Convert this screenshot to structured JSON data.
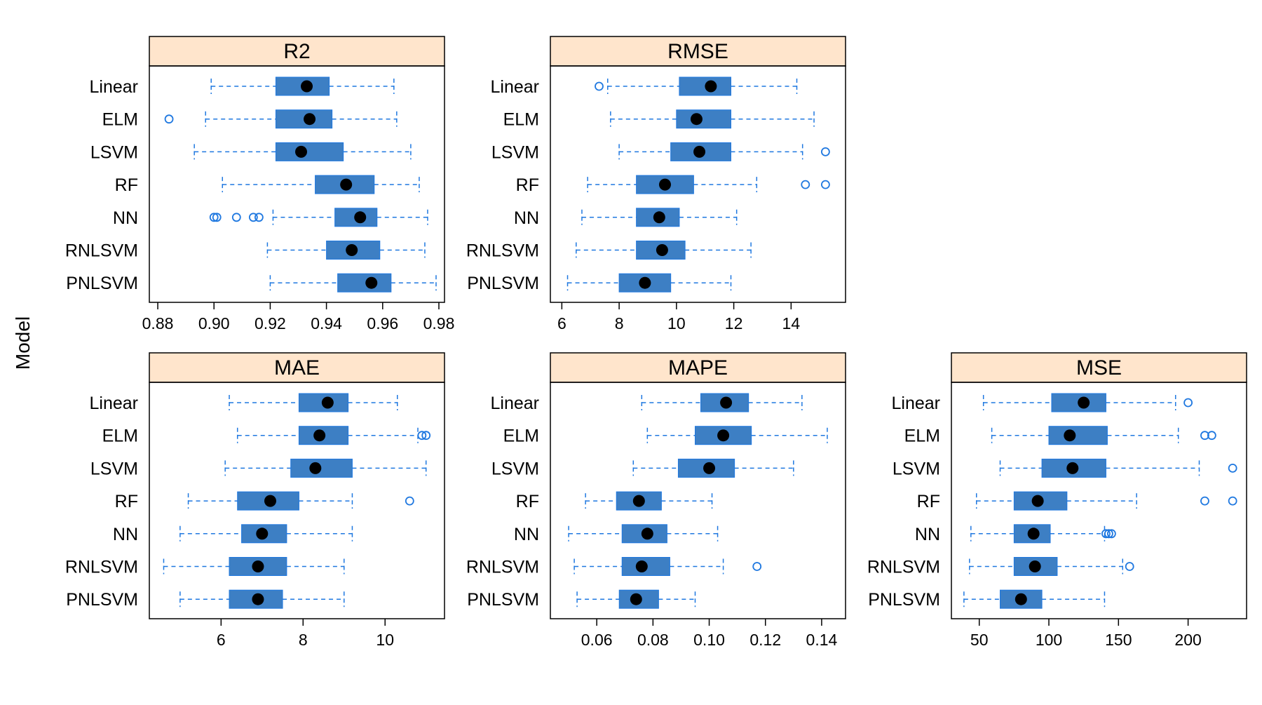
{
  "y_axis_label": "Model",
  "style": {
    "strip_fill": "#FFE5CC",
    "box_fill": "#3D7FC4",
    "whisker_color": "#1F78E0",
    "median_dot": "#000000"
  },
  "chart_data": [
    {
      "type": "boxplot",
      "title": "R2",
      "categories": [
        "Linear",
        "ELM",
        "LSVM",
        "RF",
        "NN",
        "RNLSVM",
        "PNLSVM"
      ],
      "xlim": [
        0.877,
        0.982
      ],
      "ticks": [
        0.88,
        0.9,
        0.92,
        0.94,
        0.96,
        0.98
      ],
      "tick_labels": [
        "0.88",
        "0.90",
        "0.92",
        "0.94",
        "0.96",
        "0.98"
      ],
      "boxes": [
        {
          "min": 0.899,
          "q1": 0.922,
          "median": 0.933,
          "q3": 0.941,
          "max": 0.964,
          "outliers": []
        },
        {
          "min": 0.897,
          "q1": 0.922,
          "median": 0.934,
          "q3": 0.942,
          "max": 0.965,
          "outliers": [
            0.884
          ]
        },
        {
          "min": 0.893,
          "q1": 0.922,
          "median": 0.931,
          "q3": 0.946,
          "max": 0.97,
          "outliers": []
        },
        {
          "min": 0.903,
          "q1": 0.936,
          "median": 0.947,
          "q3": 0.957,
          "max": 0.973,
          "outliers": []
        },
        {
          "min": 0.921,
          "q1": 0.943,
          "median": 0.952,
          "q3": 0.958,
          "max": 0.976,
          "outliers": [
            0.9,
            0.901,
            0.908,
            0.914,
            0.916
          ]
        },
        {
          "min": 0.919,
          "q1": 0.94,
          "median": 0.949,
          "q3": 0.959,
          "max": 0.975,
          "outliers": []
        },
        {
          "min": 0.92,
          "q1": 0.944,
          "median": 0.956,
          "q3": 0.963,
          "max": 0.979,
          "outliers": []
        }
      ]
    },
    {
      "type": "boxplot",
      "title": "RMSE",
      "categories": [
        "Linear",
        "ELM",
        "LSVM",
        "RF",
        "NN",
        "RNLSVM",
        "PNLSVM"
      ],
      "xlim": [
        5.6,
        15.9
      ],
      "ticks": [
        6,
        8,
        10,
        12,
        14
      ],
      "tick_labels": [
        "6",
        "8",
        "10",
        "12",
        "14"
      ],
      "boxes": [
        {
          "min": 7.6,
          "q1": 10.1,
          "median": 11.2,
          "q3": 11.9,
          "max": 14.2,
          "outliers": [
            7.3
          ]
        },
        {
          "min": 7.7,
          "q1": 10.0,
          "median": 10.7,
          "q3": 11.9,
          "max": 14.8,
          "outliers": []
        },
        {
          "min": 8.0,
          "q1": 9.8,
          "median": 10.8,
          "q3": 11.9,
          "max": 14.4,
          "outliers": [
            15.2
          ]
        },
        {
          "min": 6.9,
          "q1": 8.6,
          "median": 9.6,
          "q3": 10.6,
          "max": 12.8,
          "outliers": [
            14.5,
            15.2
          ]
        },
        {
          "min": 6.7,
          "q1": 8.6,
          "median": 9.4,
          "q3": 10.1,
          "max": 12.1,
          "outliers": []
        },
        {
          "min": 6.5,
          "q1": 8.6,
          "median": 9.5,
          "q3": 10.3,
          "max": 12.6,
          "outliers": []
        },
        {
          "min": 6.2,
          "q1": 8.0,
          "median": 8.9,
          "q3": 9.8,
          "max": 11.9,
          "outliers": []
        }
      ]
    },
    {
      "type": "boxplot",
      "title": "MAE",
      "categories": [
        "Linear",
        "ELM",
        "LSVM",
        "RF",
        "NN",
        "RNLSVM",
        "PNLSVM"
      ],
      "xlim": [
        4.25,
        11.45
      ],
      "ticks": [
        6,
        8,
        10
      ],
      "tick_labels": [
        "6",
        "8",
        "10"
      ],
      "boxes": [
        {
          "min": 6.2,
          "q1": 7.9,
          "median": 8.6,
          "q3": 9.1,
          "max": 10.3,
          "outliers": []
        },
        {
          "min": 6.4,
          "q1": 7.9,
          "median": 8.4,
          "q3": 9.1,
          "max": 10.8,
          "outliers": [
            10.9,
            11.0
          ]
        },
        {
          "min": 6.1,
          "q1": 7.7,
          "median": 8.3,
          "q3": 9.2,
          "max": 11.0,
          "outliers": []
        },
        {
          "min": 5.2,
          "q1": 6.4,
          "median": 7.2,
          "q3": 7.9,
          "max": 9.2,
          "outliers": [
            10.6
          ]
        },
        {
          "min": 5.0,
          "q1": 6.5,
          "median": 7.0,
          "q3": 7.6,
          "max": 9.2,
          "outliers": []
        },
        {
          "min": 4.6,
          "q1": 6.2,
          "median": 6.9,
          "q3": 7.6,
          "max": 9.0,
          "outliers": []
        },
        {
          "min": 5.0,
          "q1": 6.2,
          "median": 6.9,
          "q3": 7.5,
          "max": 9.0,
          "outliers": []
        }
      ]
    },
    {
      "type": "boxplot",
      "title": "MAPE",
      "categories": [
        "Linear",
        "ELM",
        "LSVM",
        "RF",
        "NN",
        "RNLSVM",
        "PNLSVM"
      ],
      "xlim": [
        0.0435,
        0.1485
      ],
      "ticks": [
        0.06,
        0.08,
        0.1,
        0.12,
        0.14
      ],
      "tick_labels": [
        "0.06",
        "0.08",
        "0.10",
        "0.12",
        "0.14"
      ],
      "boxes": [
        {
          "min": 0.076,
          "q1": 0.097,
          "median": 0.106,
          "q3": 0.114,
          "max": 0.133,
          "outliers": []
        },
        {
          "min": 0.078,
          "q1": 0.095,
          "median": 0.105,
          "q3": 0.115,
          "max": 0.142,
          "outliers": []
        },
        {
          "min": 0.073,
          "q1": 0.089,
          "median": 0.1,
          "q3": 0.109,
          "max": 0.13,
          "outliers": []
        },
        {
          "min": 0.056,
          "q1": 0.067,
          "median": 0.075,
          "q3": 0.083,
          "max": 0.101,
          "outliers": []
        },
        {
          "min": 0.05,
          "q1": 0.069,
          "median": 0.078,
          "q3": 0.085,
          "max": 0.103,
          "outliers": []
        },
        {
          "min": 0.052,
          "q1": 0.069,
          "median": 0.076,
          "q3": 0.086,
          "max": 0.105,
          "outliers": [
            0.117
          ]
        },
        {
          "min": 0.053,
          "q1": 0.068,
          "median": 0.074,
          "q3": 0.082,
          "max": 0.095,
          "outliers": []
        }
      ]
    },
    {
      "type": "boxplot",
      "title": "MSE",
      "categories": [
        "Linear",
        "ELM",
        "LSVM",
        "RF",
        "NN",
        "RNLSVM",
        "PNLSVM"
      ],
      "xlim": [
        30,
        242
      ],
      "ticks": [
        50,
        100,
        150,
        200
      ],
      "tick_labels": [
        "50",
        "100",
        "150",
        "200"
      ],
      "boxes": [
        {
          "min": 53,
          "q1": 102,
          "median": 125,
          "q3": 141,
          "max": 191,
          "outliers": [
            200
          ]
        },
        {
          "min": 59,
          "q1": 100,
          "median": 115,
          "q3": 142,
          "max": 193,
          "outliers": [
            212,
            217
          ]
        },
        {
          "min": 65,
          "q1": 95,
          "median": 117,
          "q3": 141,
          "max": 208,
          "outliers": [
            232
          ]
        },
        {
          "min": 48,
          "q1": 75,
          "median": 92,
          "q3": 113,
          "max": 163,
          "outliers": [
            212,
            232
          ]
        },
        {
          "min": 44,
          "q1": 75,
          "median": 89,
          "q3": 101,
          "max": 140,
          "outliers": [
            141,
            143,
            145
          ]
        },
        {
          "min": 43,
          "q1": 75,
          "median": 90,
          "q3": 106,
          "max": 153,
          "outliers": [
            158
          ]
        },
        {
          "min": 39,
          "q1": 65,
          "median": 80,
          "q3": 95,
          "max": 140,
          "outliers": []
        }
      ]
    }
  ]
}
